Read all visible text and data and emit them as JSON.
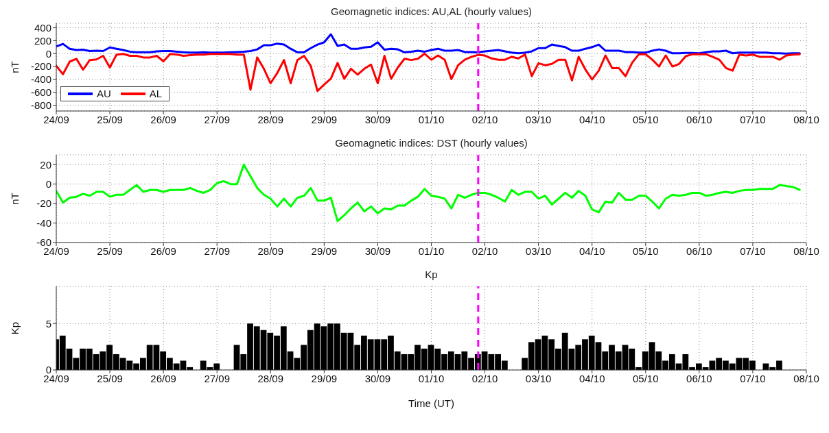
{
  "chart_data": [
    {
      "type": "line",
      "title": "Geomagnetic indices: AU,AL (hourly values)",
      "ylabel": "nT",
      "grid": true,
      "legend": "bottom left",
      "x": [
        "--09-24T00:00",
        "--09-24T03:00",
        "--09-24T06:00",
        "--09-24T09:00",
        "--09-24T12:00",
        "--09-24T15:00",
        "--09-24T18:00",
        "--09-24T21:00",
        "--09-25T00:00",
        "--09-25T03:00",
        "--09-25T06:00",
        "--09-25T09:00",
        "--09-25T12:00",
        "--09-25T15:00",
        "--09-25T18:00",
        "--09-25T21:00",
        "--09-26T00:00",
        "--09-26T03:00",
        "--09-26T06:00",
        "--09-26T09:00",
        "--09-26T12:00",
        "--09-26T15:00",
        "--09-26T18:00",
        "--09-26T21:00",
        "--09-27T00:00",
        "--09-27T03:00",
        "--09-27T06:00",
        "--09-27T09:00",
        "--09-27T12:00",
        "--09-27T15:00",
        "--09-27T18:00",
        "--09-27T21:00",
        "--09-28T00:00",
        "--09-28T03:00",
        "--09-28T06:00",
        "--09-28T09:00",
        "--09-28T12:00",
        "--09-28T15:00",
        "--09-28T18:00",
        "--09-28T21:00",
        "--09-29T00:00",
        "--09-29T03:00",
        "--09-29T06:00",
        "--09-29T09:00",
        "--09-29T12:00",
        "--09-29T15:00",
        "--09-29T18:00",
        "--09-29T21:00",
        "--09-30T00:00",
        "--09-30T03:00",
        "--09-30T06:00",
        "--09-30T09:00",
        "--09-30T12:00",
        "--09-30T15:00",
        "--09-30T18:00",
        "--09-30T21:00",
        "--10-01T00:00",
        "--10-01T03:00",
        "--10-01T06:00",
        "--10-01T09:00",
        "--10-01T12:00",
        "--10-01T15:00",
        "--10-01T18:00",
        "--10-01T21:00",
        "--10-02T00:00",
        "--10-02T03:00",
        "--10-02T06:00",
        "--10-02T09:00",
        "--10-02T12:00",
        "--10-02T15:00",
        "--10-02T18:00",
        "--10-02T21:00",
        "--10-03T00:00",
        "--10-03T03:00",
        "--10-03T06:00",
        "--10-03T09:00",
        "--10-03T12:00",
        "--10-03T15:00",
        "--10-03T18:00",
        "--10-03T21:00",
        "--10-04T00:00",
        "--10-04T03:00",
        "--10-04T06:00",
        "--10-04T09:00",
        "--10-04T12:00",
        "--10-04T15:00",
        "--10-04T18:00",
        "--10-04T21:00",
        "--10-05T00:00",
        "--10-05T03:00",
        "--10-05T06:00",
        "--10-05T09:00",
        "--10-05T12:00",
        "--10-05T15:00",
        "--10-05T18:00",
        "--10-05T21:00",
        "--10-06T00:00",
        "--10-06T03:00",
        "--10-06T06:00",
        "--10-06T09:00",
        "--10-06T12:00",
        "--10-06T15:00",
        "--10-06T18:00",
        "--10-06T21:00",
        "--10-07T00:00",
        "--10-07T03:00",
        "--10-07T06:00",
        "--10-07T09:00",
        "--10-07T12:00",
        "--10-07T15:00",
        "--10-07T18:00",
        "--10-07T21:00"
      ],
      "series": [
        {
          "name": "AU",
          "color": "#0000ff",
          "values": [
            110,
            150,
            75,
            55,
            60,
            40,
            45,
            40,
            95,
            75,
            55,
            30,
            20,
            20,
            20,
            35,
            40,
            40,
            30,
            20,
            15,
            15,
            20,
            15,
            15,
            15,
            20,
            25,
            30,
            40,
            65,
            130,
            130,
            155,
            140,
            75,
            20,
            20,
            85,
            140,
            175,
            300,
            120,
            140,
            75,
            75,
            95,
            105,
            175,
            60,
            75,
            65,
            20,
            30,
            45,
            30,
            55,
            75,
            45,
            45,
            55,
            25,
            25,
            20,
            35,
            45,
            55,
            35,
            15,
            5,
            15,
            35,
            85,
            85,
            140,
            120,
            100,
            45,
            45,
            75,
            100,
            140,
            45,
            45,
            45,
            25,
            25,
            15,
            15,
            45,
            65,
            45,
            5,
            5,
            10,
            10,
            5,
            20,
            35,
            35,
            45,
            5,
            15,
            15,
            15,
            15,
            15,
            5,
            5,
            0,
            5,
            5
          ]
        },
        {
          "name": "AL",
          "color": "#ff0000",
          "values": [
            -190,
            -320,
            -125,
            -80,
            -250,
            -100,
            -90,
            -35,
            -215,
            -15,
            -5,
            -35,
            -35,
            -60,
            -60,
            -35,
            -120,
            -5,
            -15,
            -35,
            -25,
            -15,
            -15,
            -5,
            -5,
            -5,
            -5,
            -15,
            -15,
            -560,
            -60,
            -235,
            -460,
            -300,
            -100,
            -460,
            -100,
            -35,
            -190,
            -580,
            -480,
            -390,
            -145,
            -390,
            -235,
            -325,
            -235,
            -170,
            -460,
            -35,
            -390,
            -215,
            -80,
            -100,
            -80,
            0,
            -95,
            -30,
            -95,
            -395,
            -180,
            -95,
            -50,
            -20,
            -30,
            -75,
            -95,
            -95,
            -50,
            -75,
            -15,
            -350,
            -150,
            -180,
            -160,
            -95,
            -95,
            -415,
            -50,
            -245,
            -400,
            -265,
            -30,
            -225,
            -225,
            -350,
            -140,
            -10,
            -10,
            -95,
            -200,
            -30,
            -200,
            -160,
            -40,
            -10,
            -10,
            -10,
            -50,
            -95,
            -225,
            -265,
            -15,
            -30,
            -15,
            -50,
            -50,
            -50,
            -95,
            -30,
            -15,
            -10
          ]
        }
      ],
      "xlim": [
        "--09-24",
        "--10-08"
      ],
      "xticks": [
        {
          "value": "--09-24",
          "label": "24/09"
        },
        {
          "value": "--09-25",
          "label": "25/09"
        },
        {
          "value": "--09-26",
          "label": "26/09"
        },
        {
          "value": "--09-27",
          "label": "27/09"
        },
        {
          "value": "--09-28",
          "label": "28/09"
        },
        {
          "value": "--09-29",
          "label": "29/09"
        },
        {
          "value": "--09-30",
          "label": "30/09"
        },
        {
          "value": "--10-01",
          "label": "01/10"
        },
        {
          "value": "--10-02",
          "label": "02/10"
        },
        {
          "value": "--10-03",
          "label": "03/10"
        },
        {
          "value": "--10-04",
          "label": "04/10"
        },
        {
          "value": "--10-05",
          "label": "05/10"
        },
        {
          "value": "--10-06",
          "label": "06/10"
        },
        {
          "value": "--10-07",
          "label": "07/10"
        },
        {
          "value": "--10-08",
          "label": "08/10"
        }
      ],
      "ylim": [
        -890,
        470
      ],
      "yticks": [
        -800,
        -600,
        -400,
        -200,
        0,
        200,
        400
      ],
      "ref_lines": [
        {
          "axis": "x",
          "value": "--10-01T21:00",
          "color": "#ff00ff",
          "line_style": "dashed"
        }
      ]
    },
    {
      "type": "line",
      "title": "Geomagnetic indices: DST (hourly values)",
      "ylabel": "nT",
      "grid": true,
      "x": [
        "--09-24T00:00",
        "--09-24T03:00",
        "--09-24T06:00",
        "--09-24T09:00",
        "--09-24T12:00",
        "--09-24T15:00",
        "--09-24T18:00",
        "--09-24T21:00",
        "--09-25T00:00",
        "--09-25T03:00",
        "--09-25T06:00",
        "--09-25T09:00",
        "--09-25T12:00",
        "--09-25T15:00",
        "--09-25T18:00",
        "--09-25T21:00",
        "--09-26T00:00",
        "--09-26T03:00",
        "--09-26T06:00",
        "--09-26T09:00",
        "--09-26T12:00",
        "--09-26T15:00",
        "--09-26T18:00",
        "--09-26T21:00",
        "--09-27T00:00",
        "--09-27T03:00",
        "--09-27T06:00",
        "--09-27T09:00",
        "--09-27T12:00",
        "--09-27T15:00",
        "--09-27T18:00",
        "--09-27T21:00",
        "--09-28T00:00",
        "--09-28T03:00",
        "--09-28T06:00",
        "--09-28T09:00",
        "--09-28T12:00",
        "--09-28T15:00",
        "--09-28T18:00",
        "--09-28T21:00",
        "--09-29T00:00",
        "--09-29T03:00",
        "--09-29T06:00",
        "--09-29T09:00",
        "--09-29T12:00",
        "--09-29T15:00",
        "--09-29T18:00",
        "--09-29T21:00",
        "--09-30T00:00",
        "--09-30T03:00",
        "--09-30T06:00",
        "--09-30T09:00",
        "--09-30T12:00",
        "--09-30T15:00",
        "--09-30T18:00",
        "--09-30T21:00",
        "--10-01T00:00",
        "--10-01T03:00",
        "--10-01T06:00",
        "--10-01T09:00",
        "--10-01T12:00",
        "--10-01T15:00",
        "--10-01T18:00",
        "--10-01T21:00",
        "--10-02T00:00",
        "--10-02T03:00",
        "--10-02T06:00",
        "--10-02T09:00",
        "--10-02T12:00",
        "--10-02T15:00",
        "--10-02T18:00",
        "--10-02T21:00",
        "--10-03T00:00",
        "--10-03T03:00",
        "--10-03T06:00",
        "--10-03T09:00",
        "--10-03T12:00",
        "--10-03T15:00",
        "--10-03T18:00",
        "--10-03T21:00",
        "--10-04T00:00",
        "--10-04T03:00",
        "--10-04T06:00",
        "--10-04T09:00",
        "--10-04T12:00",
        "--10-04T15:00",
        "--10-04T18:00",
        "--10-04T21:00",
        "--10-05T00:00",
        "--10-05T03:00",
        "--10-05T06:00",
        "--10-05T09:00",
        "--10-05T12:00",
        "--10-05T15:00",
        "--10-05T18:00",
        "--10-05T21:00",
        "--10-06T00:00",
        "--10-06T03:00",
        "--10-06T06:00",
        "--10-06T09:00",
        "--10-06T12:00",
        "--10-06T15:00",
        "--10-06T18:00",
        "--10-06T21:00",
        "--10-07T00:00",
        "--10-07T03:00",
        "--10-07T06:00",
        "--10-07T09:00",
        "--10-07T12:00",
        "--10-07T15:00",
        "--10-07T18:00",
        "--10-07T21:00"
      ],
      "color": "#00ff00",
      "values": [
        -7,
        -19,
        -14,
        -13,
        -10,
        -12,
        -8,
        -8,
        -13,
        -11,
        -11,
        -6,
        -1,
        -8,
        -6,
        -6,
        -8,
        -6,
        -6,
        -6,
        -4,
        -7,
        -9,
        -6,
        1,
        3,
        0,
        0,
        20,
        8,
        -4,
        -11,
        -15,
        -23,
        -15,
        -23,
        -14,
        -12,
        -4,
        -17,
        -17,
        -14,
        -38,
        -32,
        -25,
        -19,
        -28,
        -23,
        -30,
        -25,
        -26,
        -22,
        -22,
        -17,
        -13,
        -5,
        -12,
        -13,
        -15,
        -25,
        -11,
        -14,
        -11,
        -9,
        -9,
        -11,
        -14,
        -18,
        -6,
        -11,
        -8,
        -8,
        -15,
        -12,
        -21,
        -15,
        -9,
        -14,
        -7,
        -12,
        -26,
        -29,
        -18,
        -19,
        -9,
        -16,
        -16,
        -12,
        -12,
        -18,
        -25,
        -15,
        -11,
        -12,
        -11,
        -9,
        -9,
        -12,
        -11,
        -9,
        -8,
        -9,
        -7,
        -6,
        -6,
        -5,
        -5,
        -5,
        -1,
        -2,
        -3,
        -6
      ],
      "xlim": [
        "--09-24",
        "--10-08"
      ],
      "xticks": [
        {
          "value": "--09-24",
          "label": "24/09"
        },
        {
          "value": "--09-25",
          "label": "25/09"
        },
        {
          "value": "--09-26",
          "label": "26/09"
        },
        {
          "value": "--09-27",
          "label": "27/09"
        },
        {
          "value": "--09-28",
          "label": "28/09"
        },
        {
          "value": "--09-29",
          "label": "29/09"
        },
        {
          "value": "--09-30",
          "label": "30/09"
        },
        {
          "value": "--10-01",
          "label": "01/10"
        },
        {
          "value": "--10-02",
          "label": "02/10"
        },
        {
          "value": "--10-03",
          "label": "03/10"
        },
        {
          "value": "--10-04",
          "label": "04/10"
        },
        {
          "value": "--10-05",
          "label": "05/10"
        },
        {
          "value": "--10-06",
          "label": "06/10"
        },
        {
          "value": "--10-07",
          "label": "07/10"
        },
        {
          "value": "--10-08",
          "label": "08/10"
        }
      ],
      "ylim": [
        -60,
        30
      ],
      "yticks": [
        -60,
        -40,
        -20,
        0,
        20
      ],
      "ref_lines": [
        {
          "axis": "x",
          "value": "--10-01T21:00",
          "color": "#ff00ff",
          "line_style": "dashed"
        }
      ]
    },
    {
      "type": "bar",
      "title": "Kp",
      "ylabel": "Kp",
      "xlabel": "Time (UT)",
      "grid": true,
      "x": [
        "--09-24T00:00",
        "--09-24T03:00",
        "--09-24T06:00",
        "--09-24T09:00",
        "--09-24T12:00",
        "--09-24T15:00",
        "--09-24T18:00",
        "--09-24T21:00",
        "--09-25T00:00",
        "--09-25T03:00",
        "--09-25T06:00",
        "--09-25T09:00",
        "--09-25T12:00",
        "--09-25T15:00",
        "--09-25T18:00",
        "--09-25T21:00",
        "--09-26T00:00",
        "--09-26T03:00",
        "--09-26T06:00",
        "--09-26T09:00",
        "--09-26T12:00",
        "--09-26T15:00",
        "--09-26T18:00",
        "--09-26T21:00",
        "--09-27T00:00",
        "--09-27T03:00",
        "--09-27T06:00",
        "--09-27T09:00",
        "--09-27T12:00",
        "--09-27T15:00",
        "--09-27T18:00",
        "--09-27T21:00",
        "--09-28T00:00",
        "--09-28T03:00",
        "--09-28T06:00",
        "--09-28T09:00",
        "--09-28T12:00",
        "--09-28T15:00",
        "--09-28T18:00",
        "--09-28T21:00",
        "--09-29T00:00",
        "--09-29T03:00",
        "--09-29T06:00",
        "--09-29T09:00",
        "--09-29T12:00",
        "--09-29T15:00",
        "--09-29T18:00",
        "--09-29T21:00",
        "--09-30T00:00",
        "--09-30T03:00",
        "--09-30T06:00",
        "--09-30T09:00",
        "--09-30T12:00",
        "--09-30T15:00",
        "--09-30T18:00",
        "--09-30T21:00",
        "--10-01T00:00",
        "--10-01T03:00",
        "--10-01T06:00",
        "--10-01T09:00",
        "--10-01T12:00",
        "--10-01T15:00",
        "--10-01T18:00",
        "--10-01T21:00",
        "--10-02T00:00",
        "--10-02T03:00",
        "--10-02T06:00",
        "--10-02T09:00",
        "--10-02T12:00",
        "--10-02T15:00",
        "--10-02T18:00",
        "--10-02T21:00",
        "--10-03T00:00",
        "--10-03T03:00",
        "--10-03T06:00",
        "--10-03T09:00",
        "--10-03T12:00",
        "--10-03T15:00",
        "--10-03T18:00",
        "--10-03T21:00",
        "--10-04T00:00",
        "--10-04T03:00",
        "--10-04T06:00",
        "--10-04T09:00",
        "--10-04T12:00",
        "--10-04T15:00",
        "--10-04T18:00",
        "--10-04T21:00",
        "--10-05T00:00",
        "--10-05T03:00",
        "--10-05T06:00",
        "--10-05T09:00",
        "--10-05T12:00",
        "--10-05T15:00",
        "--10-05T18:00",
        "--10-05T21:00",
        "--10-06T00:00",
        "--10-06T03:00",
        "--10-06T06:00",
        "--10-06T09:00",
        "--10-06T12:00",
        "--10-06T15:00",
        "--10-06T18:00",
        "--10-06T21:00",
        "--10-07T00:00",
        "--10-07T03:00",
        "--10-07T06:00",
        "--10-07T09:00",
        "--10-07T12:00",
        "--10-07T15:00",
        "--10-07T18:00",
        "--10-07T21:00"
      ],
      "color": "#000000",
      "values": [
        3.3,
        3.7,
        2.3,
        1.3,
        2.3,
        2.3,
        1.7,
        2,
        2.7,
        1.7,
        1.3,
        1,
        0.7,
        1.3,
        2.7,
        2.7,
        2,
        1.3,
        0.7,
        1,
        0.3,
        0,
        1,
        0.3,
        0.7,
        0,
        0,
        2.7,
        1.7,
        5,
        4.7,
        4.3,
        4,
        3.7,
        4.7,
        2,
        1.3,
        2.7,
        4.3,
        5,
        4.7,
        5,
        5,
        4,
        4,
        2.7,
        3.7,
        3.3,
        3.3,
        3.3,
        3.7,
        2,
        1.7,
        1.7,
        2.7,
        2.3,
        2.7,
        2.3,
        1.7,
        2,
        1.7,
        2,
        1.3,
        1.7,
        2,
        1.7,
        1.7,
        1,
        0,
        0,
        1.3,
        3,
        3.3,
        3.7,
        3.3,
        2.3,
        4,
        2.3,
        2.7,
        3.3,
        3.7,
        3,
        2,
        2.7,
        2,
        2.7,
        2.3,
        0.3,
        2,
        3,
        2,
        1,
        1.7,
        0.7,
        1.7,
        0.3,
        0.7,
        0.3,
        1,
        1.3,
        1,
        0.7,
        1.3,
        1.3,
        1,
        0,
        0.7,
        0.3,
        1,
        0,
        0,
        0
      ],
      "xlim": [
        "--09-24",
        "--10-08"
      ],
      "xticks": [
        {
          "value": "--09-24",
          "label": "24/09"
        },
        {
          "value": "--09-25",
          "label": "25/09"
        },
        {
          "value": "--09-26",
          "label": "26/09"
        },
        {
          "value": "--09-27",
          "label": "27/09"
        },
        {
          "value": "--09-28",
          "label": "28/09"
        },
        {
          "value": "--09-29",
          "label": "29/09"
        },
        {
          "value": "--09-30",
          "label": "30/09"
        },
        {
          "value": "--10-01",
          "label": "01/10"
        },
        {
          "value": "--10-02",
          "label": "02/10"
        },
        {
          "value": "--10-03",
          "label": "03/10"
        },
        {
          "value": "--10-04",
          "label": "04/10"
        },
        {
          "value": "--10-05",
          "label": "05/10"
        },
        {
          "value": "--10-06",
          "label": "06/10"
        },
        {
          "value": "--10-07",
          "label": "07/10"
        },
        {
          "value": "--10-08",
          "label": "08/10"
        }
      ],
      "ylim": [
        0,
        9
      ],
      "yticks": [
        0,
        5
      ],
      "ref_lines": [
        {
          "axis": "x",
          "value": "--10-01T21:00",
          "color": "#ff00ff",
          "line_style": "dashed"
        }
      ]
    }
  ]
}
